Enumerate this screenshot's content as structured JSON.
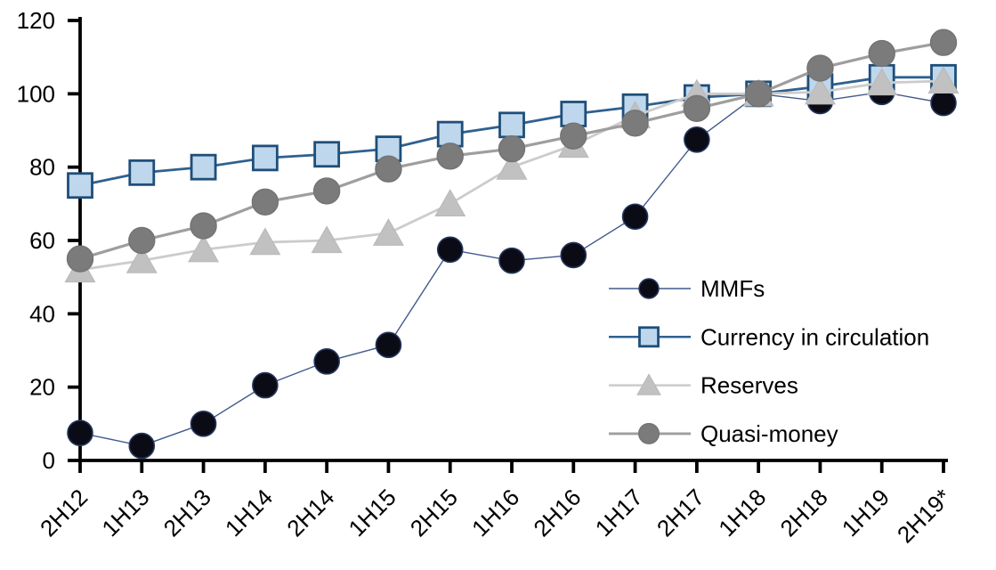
{
  "chart_data": {
    "type": "line",
    "title": "",
    "xlabel": "",
    "ylabel": "",
    "grid": false,
    "background": "#ffffff",
    "axis_color": "#000000",
    "ylim": [
      0,
      120
    ],
    "yticks": [
      0,
      20,
      40,
      60,
      80,
      100,
      120
    ],
    "legend_position": "inside-right",
    "categories": [
      "2H12",
      "1H13",
      "2H13",
      "1H14",
      "2H14",
      "1H15",
      "2H15",
      "1H16",
      "2H16",
      "1H17",
      "2H17",
      "1H18",
      "2H18",
      "1H19",
      "2H19*"
    ],
    "series": [
      {
        "name": "MMFs",
        "marker": "circle",
        "marker_size": 28,
        "marker_fill": "#0b0b16",
        "marker_stroke": "#24365e",
        "marker_stroke_width": 1.6,
        "line_color": "#41598c",
        "line_width": 1.4,
        "values": [
          7.5,
          4,
          10,
          20.5,
          27,
          31.5,
          57.5,
          54.5,
          56,
          66.5,
          87.5,
          100,
          98,
          100.5,
          97.5
        ]
      },
      {
        "name": "Currency in circulation",
        "marker": "square",
        "marker_size": 27,
        "marker_fill": "#bed7ec",
        "marker_stroke": "#1f4e79",
        "marker_stroke_width": 2.8,
        "line_color": "#2f618f",
        "line_width": 2.8,
        "values": [
          75,
          78.5,
          80,
          82.5,
          83.5,
          85,
          89,
          91.5,
          94.5,
          96.5,
          99,
          100,
          102,
          104.5,
          104.5
        ]
      },
      {
        "name": "Reserves",
        "marker": "triangle",
        "marker_size": 33,
        "marker_fill": "#c1c1c1",
        "marker_stroke": "#bababa",
        "marker_stroke_width": 1.2,
        "line_color": "#cccccc",
        "line_width": 2.8,
        "values": [
          52,
          54.5,
          57.5,
          59.5,
          60,
          62,
          70,
          80,
          86,
          94,
          100,
          100,
          100.5,
          103,
          103.5
        ]
      },
      {
        "name": "Quasi-money",
        "marker": "circle",
        "marker_size": 29,
        "marker_fill": "#7b7b7b",
        "marker_stroke": "#737373",
        "marker_stroke_width": 1.4,
        "line_color": "#9e9e9e",
        "line_width": 3.2,
        "values": [
          55,
          60,
          64,
          70.5,
          73.5,
          79.5,
          83,
          85,
          88.5,
          92,
          96,
          100,
          107,
          111,
          114
        ]
      }
    ]
  }
}
